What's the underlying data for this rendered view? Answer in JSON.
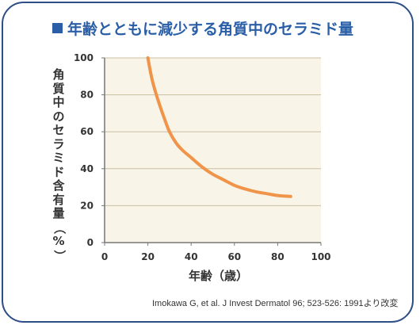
{
  "title": "年齢とともに減少する角質中のセラミド量",
  "citation": "Imokawa G, et al. J Invest Dermatol 96; 523-526: 1991より改変",
  "colors": {
    "frame": "#2e4e86",
    "title": "#2a5fa8",
    "plot_bg": "#f8f4e8",
    "grid": "#c8bfa2",
    "curve": "#f0944a",
    "axis": "#777777",
    "tick_text": "#333333"
  },
  "chart_data": {
    "type": "line",
    "title": "年齢とともに減少する角質中のセラミド量",
    "xlabel": "年齢（歳）",
    "ylabel": "角質中のセラミド含有量（%）",
    "xlim": [
      0,
      100
    ],
    "ylim": [
      0,
      100
    ],
    "xticks": [
      0,
      20,
      40,
      60,
      80,
      100
    ],
    "yticks": [
      0,
      20,
      40,
      60,
      80,
      100
    ],
    "grid": "horizontal",
    "series": [
      {
        "name": "",
        "x": [
          20,
          22,
          25,
          28,
          30,
          33,
          36,
          40,
          45,
          50,
          55,
          60,
          65,
          70,
          75,
          80,
          86
        ],
        "y": [
          100,
          88,
          76,
          66,
          60,
          54,
          50,
          46,
          41,
          37,
          34,
          31,
          29,
          27.5,
          26.5,
          25.5,
          25
        ]
      }
    ]
  }
}
